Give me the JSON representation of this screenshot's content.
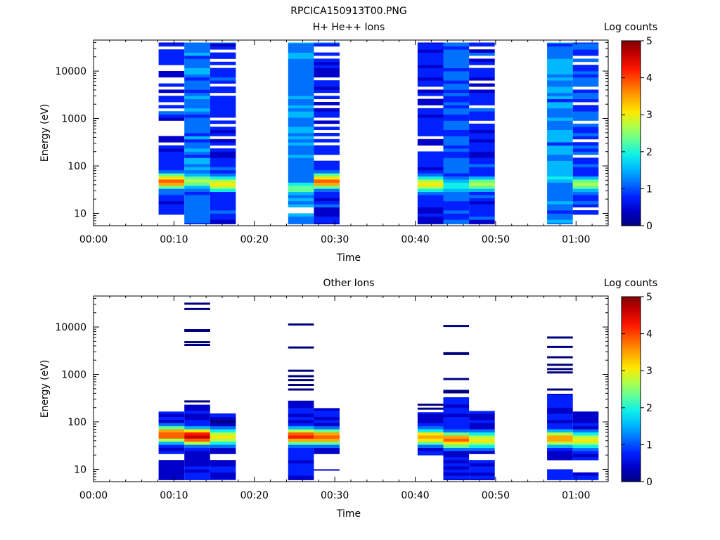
{
  "figure": {
    "title": "RPCICA150913T00.PNG"
  },
  "colormap": [
    "#00007f",
    "#0000c8",
    "#0020ff",
    "#0070ff",
    "#00b8ff",
    "#10f0e8",
    "#60ff98",
    "#b0ff48",
    "#ffe800",
    "#ffa800",
    "#ff6000",
    "#ff1800",
    "#c80000",
    "#800000"
  ],
  "chart_data": [
    {
      "type": "heatmap",
      "title": "H+ He++ Ions",
      "xlabel": "Time",
      "ylabel": "Energy (eV)",
      "x_ticks": [
        "00:00",
        "00:10",
        "00:20",
        "00:30",
        "00:40",
        "00:50",
        "01:00"
      ],
      "x_range_minutes": [
        0,
        64
      ],
      "y_scale": "log",
      "y_ticks": [
        "10",
        "100",
        "1000",
        "10000"
      ],
      "y_range": [
        5.5,
        45000
      ],
      "colorbar": {
        "label": "Log counts",
        "ticks": [
          "0",
          "1",
          "2",
          "3",
          "4",
          "5"
        ],
        "range": [
          0,
          5
        ]
      },
      "columns": [
        {
          "t0": 8.1,
          "t1": 11.3,
          "emin": 9.5,
          "emax": 40000,
          "peak_e": 48,
          "peak_v": 3.7,
          "base": 0.65,
          "gaps": [
            32000,
            13500,
            11500,
            7400,
            5800,
            4200,
            3200,
            2000,
            1500,
            900,
            760,
            610,
            500,
            450,
            300
          ]
        },
        {
          "t0": 11.3,
          "t1": 14.5,
          "emin": 6,
          "emax": 40000,
          "peak_e": 48,
          "peak_v": 2.6,
          "base": 1.1,
          "gaps": []
        },
        {
          "t0": 14.5,
          "t1": 17.7,
          "emin": 6,
          "emax": 40000,
          "peak_e": 42,
          "peak_v": 3.0,
          "base": 0.7,
          "gaps": [
            27000,
            17000,
            12500,
            5200,
            3300,
            1050,
            700,
            420,
            260
          ]
        },
        {
          "t0": 24.2,
          "t1": 27.4,
          "emin": 6,
          "emax": 40000,
          "peak_e": 34,
          "peak_v": 2.4,
          "base": 1.2,
          "gaps": [
            10.5,
            13.5
          ]
        },
        {
          "t0": 27.4,
          "t1": 30.6,
          "emin": 6,
          "emax": 40000,
          "peak_e": 48,
          "peak_v": 3.7,
          "base": 0.65,
          "gaps": [
            32000,
            25000,
            19000,
            7400,
            3400,
            2400,
            1850,
            950,
            770,
            560,
            420,
            300,
            165,
            145
          ]
        },
        {
          "t0": 40.3,
          "t1": 43.5,
          "emin": 6,
          "emax": 40000,
          "peak_e": 42,
          "peak_v": 3.2,
          "base": 0.6,
          "gaps": [
            4200,
            2700,
            1800,
            420,
            270,
            230
          ]
        },
        {
          "t0": 43.5,
          "t1": 46.7,
          "emin": 6,
          "emax": 40000,
          "peak_e": 38,
          "peak_v": 2.1,
          "base": 1.0,
          "gaps": []
        },
        {
          "t0": 46.7,
          "t1": 49.9,
          "emin": 6,
          "emax": 40000,
          "peak_e": 42,
          "peak_v": 2.7,
          "base": 0.7,
          "gaps": [
            31000,
            20000,
            12000,
            6000,
            4200,
            1700,
            900
          ]
        },
        {
          "t0": 56.4,
          "t1": 59.6,
          "emin": 6,
          "emax": 40000,
          "peak_e": 55,
          "peak_v": 1.8,
          "base": 1.2,
          "gaps": []
        },
        {
          "t0": 59.6,
          "t1": 62.8,
          "emin": 9.5,
          "emax": 40000,
          "peak_e": 42,
          "peak_v": 2.6,
          "base": 0.9,
          "gaps": [
            20000,
            15000,
            4500,
            2100,
            900,
            330,
            165,
            13
          ]
        }
      ]
    },
    {
      "type": "heatmap",
      "title": "Other Ions",
      "xlabel": "Time",
      "ylabel": "Energy (eV)",
      "x_ticks": [
        "00:00",
        "00:10",
        "00:20",
        "00:30",
        "00:40",
        "00:50",
        "01:00"
      ],
      "x_range_minutes": [
        0,
        64
      ],
      "y_scale": "log",
      "y_ticks": [
        "10",
        "100",
        "1000",
        "10000"
      ],
      "y_range": [
        5.5,
        45000
      ],
      "colorbar": {
        "label": "Log counts",
        "ticks": [
          "0",
          "1",
          "2",
          "3",
          "4",
          "5"
        ],
        "range": [
          0,
          5
        ]
      },
      "columns": [
        {
          "t0": 8.1,
          "t1": 11.3,
          "emin": 6,
          "emax": 165,
          "peak_e": 55,
          "peak_v": 4.0,
          "base": 0.4,
          "gaps": [
            19,
            17
          ],
          "lines": []
        },
        {
          "t0": 11.3,
          "t1": 14.5,
          "emin": 6,
          "emax": 230,
          "peak_e": 50,
          "peak_v": 4.6,
          "base": 0.6,
          "gaps": [],
          "lines": [
            31000,
            24000,
            8600,
            8300,
            4800,
            4200,
            270
          ]
        },
        {
          "t0": 14.5,
          "t1": 17.7,
          "emin": 6,
          "emax": 150,
          "peak_e": 48,
          "peak_v": 3.2,
          "base": 0.4,
          "gaps": [
            19,
            17
          ],
          "lines": []
        },
        {
          "t0": 24.2,
          "t1": 27.4,
          "emin": 6,
          "emax": 280,
          "peak_e": 50,
          "peak_v": 4.3,
          "base": 0.6,
          "gaps": [],
          "lines": [
            11300,
            3700,
            1200,
            920,
            760,
            600,
            480
          ]
        },
        {
          "t0": 27.4,
          "t1": 30.6,
          "emin": 9.5,
          "emax": 195,
          "peak_e": 48,
          "peak_v": 3.8,
          "base": 0.5,
          "gaps": [
            19,
            17,
            15,
            13,
            11.5
          ],
          "lines": []
        },
        {
          "t0": 40.3,
          "t1": 43.5,
          "emin": 20,
          "emax": 160,
          "peak_e": 48,
          "peak_v": 3.6,
          "base": 0.7,
          "gaps": [],
          "lines": [
            230,
            190
          ]
        },
        {
          "t0": 43.5,
          "t1": 46.7,
          "emin": 6,
          "emax": 330,
          "peak_e": 42,
          "peak_v": 3.7,
          "base": 0.5,
          "gaps": [],
          "lines": [
            10500,
            2800,
            2700,
            800,
            450,
            420
          ]
        },
        {
          "t0": 46.7,
          "t1": 49.9,
          "emin": 6,
          "emax": 170,
          "peak_e": 42,
          "peak_v": 3.2,
          "base": 0.6,
          "gaps": [
            19,
            17
          ],
          "lines": []
        },
        {
          "t0": 56.4,
          "t1": 59.6,
          "emin": 6,
          "emax": 390,
          "peak_e": 45,
          "peak_v": 3.4,
          "base": 0.6,
          "gaps": [
            15,
            13,
            11,
            10.5
          ],
          "lines": [
            6000,
            3800,
            2300,
            1600,
            1300,
            1100,
            480
          ]
        },
        {
          "t0": 59.6,
          "t1": 62.8,
          "emin": 6,
          "emax": 165,
          "peak_e": 42,
          "peak_v": 3.2,
          "base": 0.5,
          "gaps": [
            15,
            13,
            11,
            10
          ],
          "lines": []
        }
      ]
    }
  ]
}
